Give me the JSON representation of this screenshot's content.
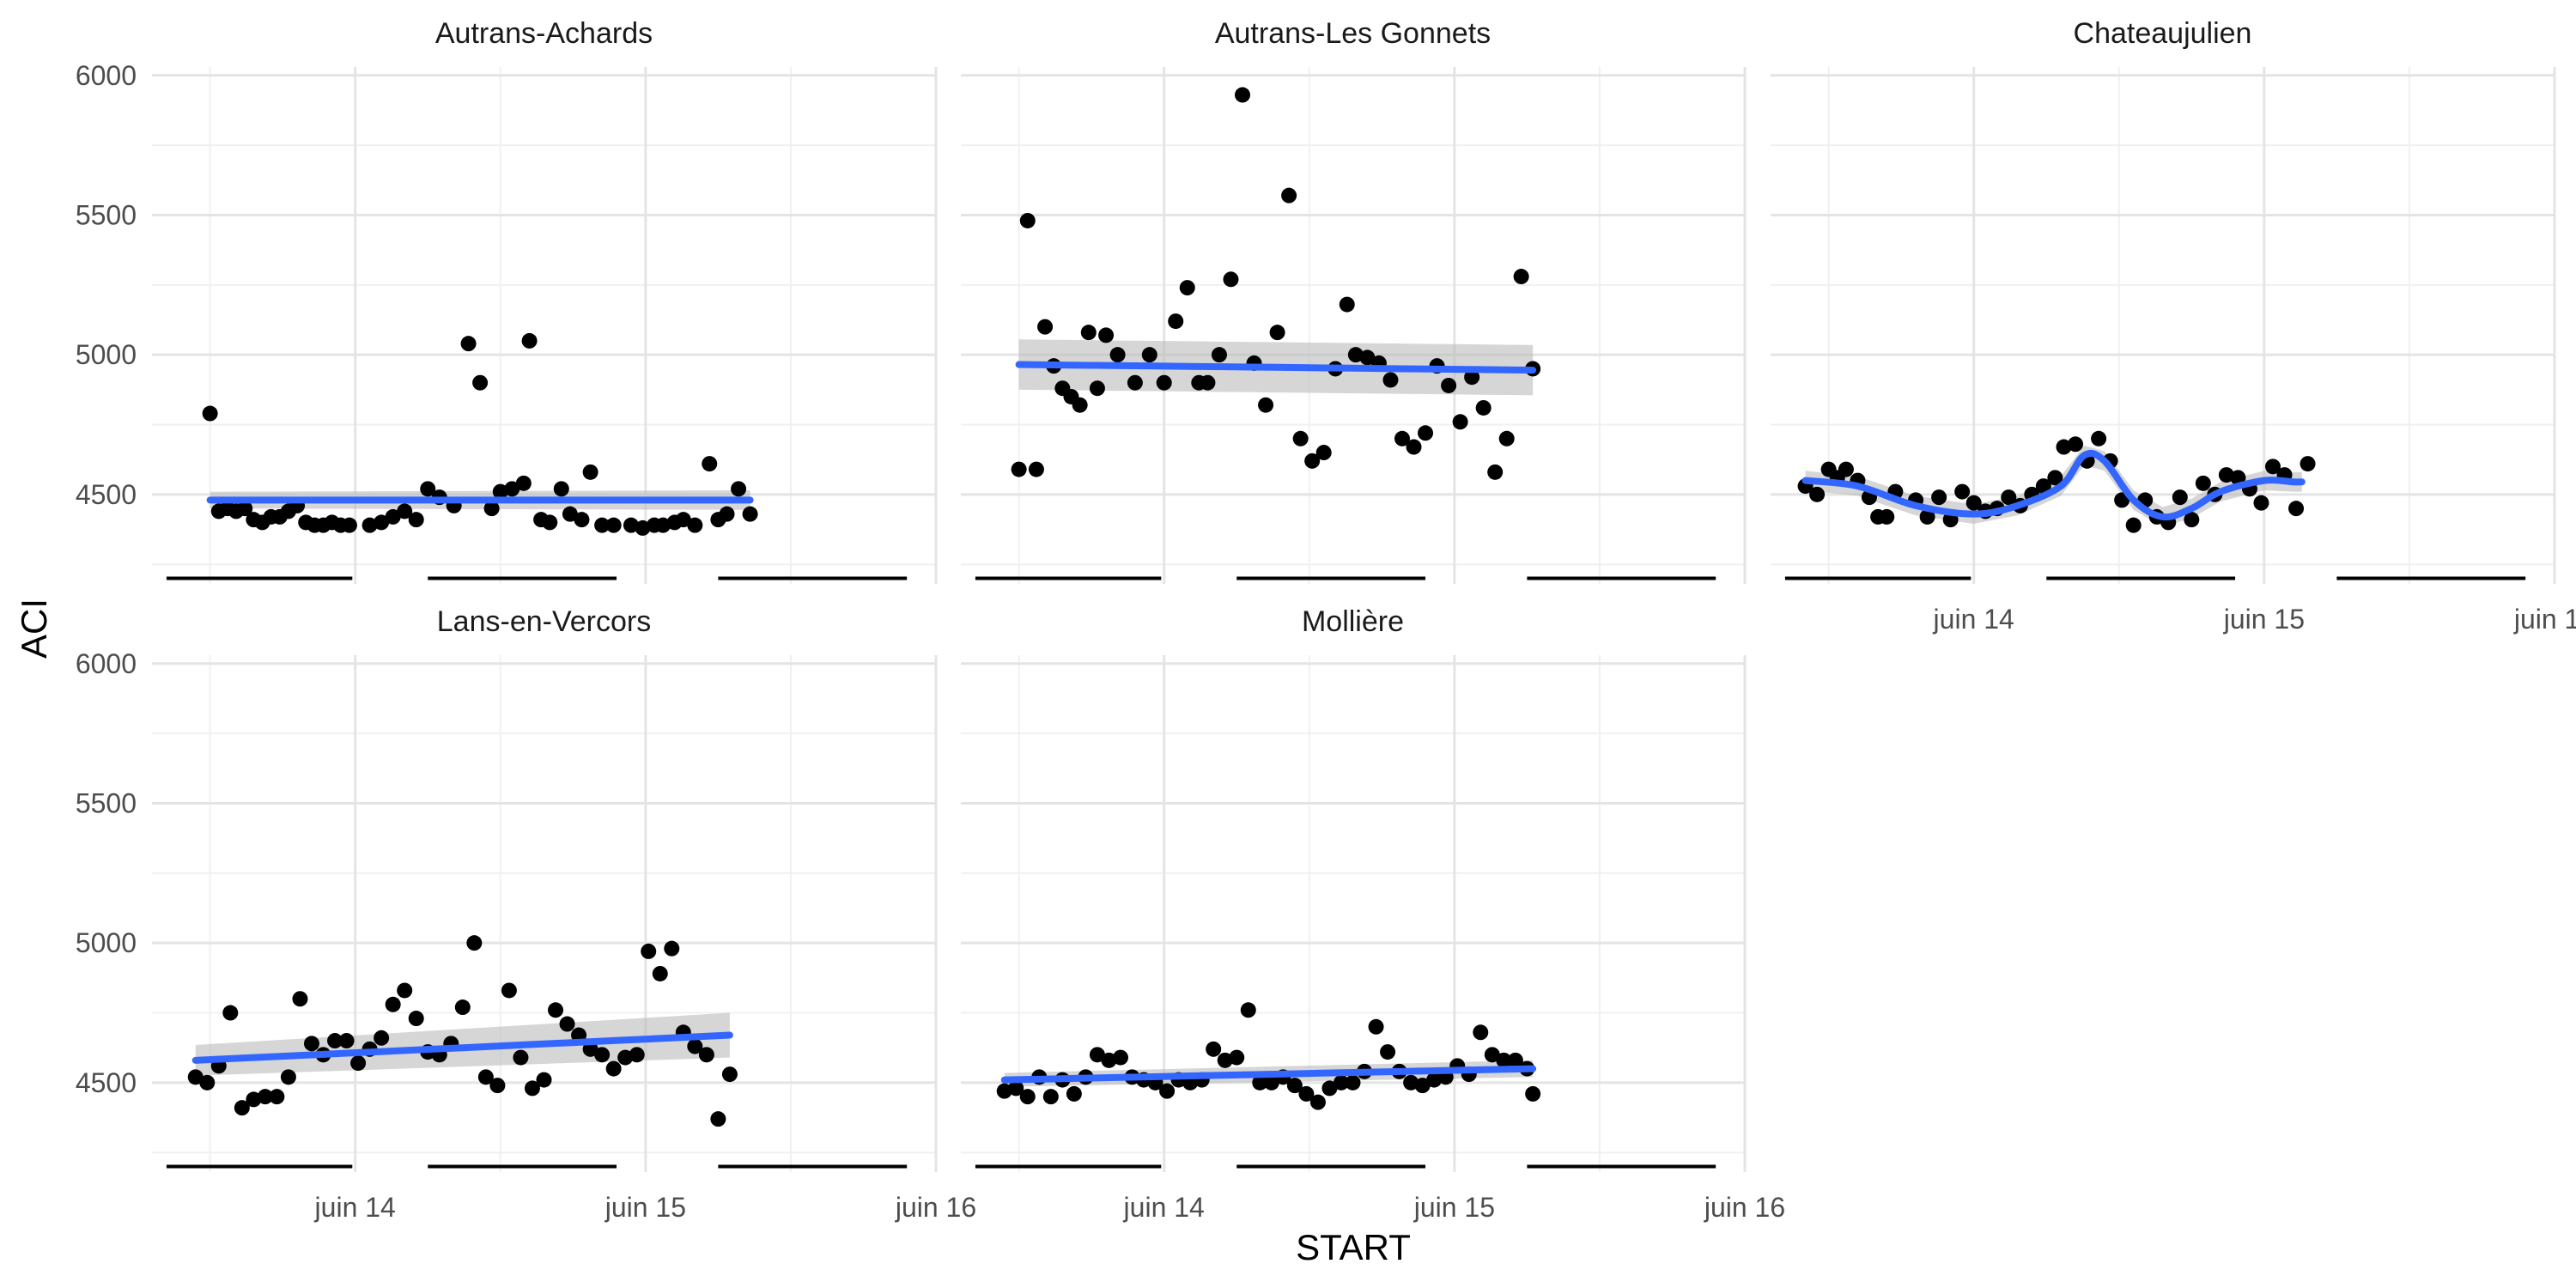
{
  "chart_data": {
    "type": "scatter",
    "xlabel": "START",
    "ylabel": "ACI",
    "ylim": [
      4180,
      6030
    ],
    "xlim": [
      13.3,
      16.0
    ],
    "y_ticks": [
      4500,
      5000,
      5500,
      6000
    ],
    "x_ticks": [
      {
        "value": 14,
        "label": "juin 14"
      },
      {
        "value": 15,
        "label": "juin 15"
      },
      {
        "value": 16,
        "label": "juin 16"
      }
    ],
    "night_bars": [
      [
        13.35,
        13.99
      ],
      [
        14.25,
        14.9
      ],
      [
        15.25,
        15.9
      ]
    ],
    "night_bar_y": 4200,
    "grid": true,
    "smooth_color": "#3366FF",
    "ribbon_color": "#BBBBBB",
    "point_color": "#000000",
    "panels": [
      {
        "name": "Autrans-Achards",
        "points": [
          [
            13.5,
            4790
          ],
          [
            13.53,
            4440
          ],
          [
            13.56,
            4450
          ],
          [
            13.59,
            4440
          ],
          [
            13.62,
            4450
          ],
          [
            13.65,
            4410
          ],
          [
            13.68,
            4400
          ],
          [
            13.71,
            4420
          ],
          [
            13.74,
            4420
          ],
          [
            13.77,
            4440
          ],
          [
            13.8,
            4460
          ],
          [
            13.83,
            4400
          ],
          [
            13.86,
            4390
          ],
          [
            13.89,
            4390
          ],
          [
            13.92,
            4400
          ],
          [
            13.95,
            4390
          ],
          [
            13.98,
            4390
          ],
          [
            14.05,
            4390
          ],
          [
            14.09,
            4400
          ],
          [
            14.13,
            4420
          ],
          [
            14.17,
            4440
          ],
          [
            14.21,
            4410
          ],
          [
            14.25,
            4520
          ],
          [
            14.29,
            4490
          ],
          [
            14.34,
            4460
          ],
          [
            14.39,
            5040
          ],
          [
            14.43,
            4900
          ],
          [
            14.47,
            4450
          ],
          [
            14.5,
            4510
          ],
          [
            14.54,
            4520
          ],
          [
            14.58,
            4540
          ],
          [
            14.6,
            5050
          ],
          [
            14.64,
            4410
          ],
          [
            14.67,
            4400
          ],
          [
            14.71,
            4520
          ],
          [
            14.74,
            4430
          ],
          [
            14.78,
            4410
          ],
          [
            14.81,
            4580
          ],
          [
            14.85,
            4390
          ],
          [
            14.89,
            4390
          ],
          [
            14.95,
            4390
          ],
          [
            14.99,
            4380
          ],
          [
            15.03,
            4390
          ],
          [
            15.06,
            4390
          ],
          [
            15.1,
            4400
          ],
          [
            15.13,
            4410
          ],
          [
            15.17,
            4390
          ],
          [
            15.22,
            4610
          ],
          [
            15.25,
            4410
          ],
          [
            15.28,
            4430
          ],
          [
            15.32,
            4520
          ],
          [
            15.36,
            4430
          ]
        ],
        "fit": {
          "kind": "line",
          "y0": 4480,
          "y1": 4480,
          "ci0": 30,
          "ci1": 35
        }
      },
      {
        "name": "Autrans-Les Gonnets",
        "points": [
          [
            13.5,
            4590
          ],
          [
            13.53,
            5480
          ],
          [
            13.56,
            4590
          ],
          [
            13.59,
            5100
          ],
          [
            13.62,
            4960
          ],
          [
            13.65,
            4880
          ],
          [
            13.68,
            4850
          ],
          [
            13.71,
            4820
          ],
          [
            13.74,
            5080
          ],
          [
            13.77,
            4880
          ],
          [
            13.8,
            5070
          ],
          [
            13.84,
            5000
          ],
          [
            13.9,
            4900
          ],
          [
            13.95,
            5000
          ],
          [
            14.0,
            4900
          ],
          [
            14.04,
            5120
          ],
          [
            14.08,
            5240
          ],
          [
            14.12,
            4900
          ],
          [
            14.15,
            4900
          ],
          [
            14.19,
            5000
          ],
          [
            14.23,
            5270
          ],
          [
            14.27,
            5930
          ],
          [
            14.31,
            4970
          ],
          [
            14.35,
            4820
          ],
          [
            14.39,
            5080
          ],
          [
            14.43,
            5570
          ],
          [
            14.47,
            4700
          ],
          [
            14.51,
            4620
          ],
          [
            14.55,
            4650
          ],
          [
            14.59,
            4950
          ],
          [
            14.63,
            5180
          ],
          [
            14.66,
            5000
          ],
          [
            14.7,
            4990
          ],
          [
            14.74,
            4970
          ],
          [
            14.78,
            4910
          ],
          [
            14.82,
            4700
          ],
          [
            14.86,
            4670
          ],
          [
            14.9,
            4720
          ],
          [
            14.94,
            4960
          ],
          [
            14.98,
            4890
          ],
          [
            15.02,
            4760
          ],
          [
            15.06,
            4920
          ],
          [
            15.1,
            4810
          ],
          [
            15.14,
            4580
          ],
          [
            15.18,
            4700
          ],
          [
            15.23,
            5280
          ],
          [
            15.27,
            4950
          ]
        ],
        "fit": {
          "kind": "line",
          "y0": 4965,
          "y1": 4945,
          "ci0": 90,
          "ci1": 90
        }
      },
      {
        "name": "Chateaujulien",
        "points": [
          [
            13.42,
            4530
          ],
          [
            13.46,
            4500
          ],
          [
            13.5,
            4590
          ],
          [
            13.53,
            4560
          ],
          [
            13.56,
            4590
          ],
          [
            13.6,
            4550
          ],
          [
            13.64,
            4490
          ],
          [
            13.67,
            4420
          ],
          [
            13.7,
            4420
          ],
          [
            13.73,
            4510
          ],
          [
            13.8,
            4480
          ],
          [
            13.84,
            4420
          ],
          [
            13.88,
            4490
          ],
          [
            13.92,
            4410
          ],
          [
            13.96,
            4510
          ],
          [
            14.0,
            4470
          ],
          [
            14.04,
            4440
          ],
          [
            14.08,
            4450
          ],
          [
            14.12,
            4490
          ],
          [
            14.16,
            4460
          ],
          [
            14.2,
            4500
          ],
          [
            14.24,
            4530
          ],
          [
            14.28,
            4560
          ],
          [
            14.31,
            4670
          ],
          [
            14.35,
            4680
          ],
          [
            14.39,
            4620
          ],
          [
            14.43,
            4700
          ],
          [
            14.47,
            4620
          ],
          [
            14.51,
            4480
          ],
          [
            14.55,
            4390
          ],
          [
            14.59,
            4480
          ],
          [
            14.63,
            4420
          ],
          [
            14.67,
            4400
          ],
          [
            14.71,
            4490
          ],
          [
            14.75,
            4410
          ],
          [
            14.79,
            4540
          ],
          [
            14.83,
            4500
          ],
          [
            14.87,
            4570
          ],
          [
            14.91,
            4560
          ],
          [
            14.95,
            4520
          ],
          [
            14.99,
            4470
          ],
          [
            15.03,
            4600
          ],
          [
            15.07,
            4570
          ],
          [
            15.11,
            4450
          ],
          [
            15.15,
            4610
          ]
        ],
        "fit": {
          "kind": "curve",
          "x": [
            13.42,
            13.6,
            13.8,
            14.0,
            14.15,
            14.3,
            14.38,
            14.45,
            14.55,
            14.65,
            14.75,
            14.85,
            15.0,
            15.1,
            15.13
          ],
          "y": [
            4550,
            4530,
            4460,
            4430,
            4460,
            4530,
            4640,
            4620,
            4480,
            4420,
            4450,
            4510,
            4550,
            4545,
            4545
          ],
          "ci": 35
        }
      },
      {
        "name": "Lans-en-Vercors",
        "points": [
          [
            13.45,
            4520
          ],
          [
            13.49,
            4500
          ],
          [
            13.53,
            4560
          ],
          [
            13.57,
            4750
          ],
          [
            13.61,
            4410
          ],
          [
            13.65,
            4440
          ],
          [
            13.69,
            4450
          ],
          [
            13.73,
            4450
          ],
          [
            13.77,
            4520
          ],
          [
            13.81,
            4800
          ],
          [
            13.85,
            4640
          ],
          [
            13.89,
            4600
          ],
          [
            13.93,
            4650
          ],
          [
            13.97,
            4650
          ],
          [
            14.01,
            4570
          ],
          [
            14.05,
            4620
          ],
          [
            14.09,
            4660
          ],
          [
            14.13,
            4780
          ],
          [
            14.17,
            4830
          ],
          [
            14.21,
            4730
          ],
          [
            14.25,
            4610
          ],
          [
            14.29,
            4600
          ],
          [
            14.33,
            4640
          ],
          [
            14.37,
            4770
          ],
          [
            14.41,
            5000
          ],
          [
            14.45,
            4520
          ],
          [
            14.49,
            4490
          ],
          [
            14.53,
            4830
          ],
          [
            14.57,
            4590
          ],
          [
            14.61,
            4480
          ],
          [
            14.65,
            4510
          ],
          [
            14.69,
            4760
          ],
          [
            14.73,
            4710
          ],
          [
            14.77,
            4670
          ],
          [
            14.81,
            4620
          ],
          [
            14.85,
            4600
          ],
          [
            14.89,
            4550
          ],
          [
            14.93,
            4590
          ],
          [
            14.97,
            4600
          ],
          [
            15.01,
            4970
          ],
          [
            15.05,
            4890
          ],
          [
            15.09,
            4980
          ],
          [
            15.13,
            4680
          ],
          [
            15.17,
            4630
          ],
          [
            15.21,
            4600
          ],
          [
            15.25,
            4370
          ],
          [
            15.29,
            4530
          ]
        ],
        "fit": {
          "kind": "line",
          "y0": 4580,
          "y1": 4670,
          "ci0": 55,
          "ci1": 80
        }
      },
      {
        "name": "Mollière",
        "points": [
          [
            13.45,
            4470
          ],
          [
            13.49,
            4480
          ],
          [
            13.53,
            4450
          ],
          [
            13.57,
            4520
          ],
          [
            13.61,
            4450
          ],
          [
            13.65,
            4510
          ],
          [
            13.69,
            4460
          ],
          [
            13.73,
            4520
          ],
          [
            13.77,
            4600
          ],
          [
            13.81,
            4580
          ],
          [
            13.85,
            4590
          ],
          [
            13.89,
            4520
          ],
          [
            13.93,
            4510
          ],
          [
            13.97,
            4500
          ],
          [
            14.01,
            4470
          ],
          [
            14.05,
            4510
          ],
          [
            14.09,
            4500
          ],
          [
            14.13,
            4510
          ],
          [
            14.17,
            4620
          ],
          [
            14.21,
            4580
          ],
          [
            14.25,
            4590
          ],
          [
            14.29,
            4760
          ],
          [
            14.33,
            4500
          ],
          [
            14.37,
            4500
          ],
          [
            14.41,
            4520
          ],
          [
            14.45,
            4490
          ],
          [
            14.49,
            4460
          ],
          [
            14.53,
            4430
          ],
          [
            14.57,
            4480
          ],
          [
            14.61,
            4500
          ],
          [
            14.65,
            4500
          ],
          [
            14.69,
            4540
          ],
          [
            14.73,
            4700
          ],
          [
            14.77,
            4610
          ],
          [
            14.81,
            4540
          ],
          [
            14.85,
            4500
          ],
          [
            14.89,
            4490
          ],
          [
            14.93,
            4510
          ],
          [
            14.97,
            4520
          ],
          [
            15.01,
            4560
          ],
          [
            15.05,
            4530
          ],
          [
            15.09,
            4680
          ],
          [
            15.13,
            4600
          ],
          [
            15.17,
            4580
          ],
          [
            15.21,
            4580
          ],
          [
            15.25,
            4550
          ],
          [
            15.27,
            4460
          ]
        ],
        "fit": {
          "kind": "line",
          "y0": 4510,
          "y1": 4550,
          "ci0": 25,
          "ci1": 30
        }
      }
    ]
  }
}
